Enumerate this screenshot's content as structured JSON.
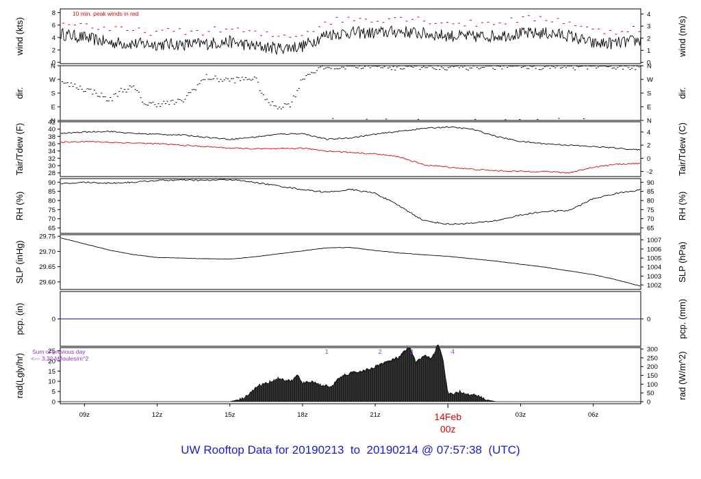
{
  "footer": {
    "title": "UW Rooftop Data for 20190213  to  20190214 @ 07:57:38  (UTC)"
  },
  "colors": {
    "ink": "#000000",
    "red": "#e00000",
    "blue": "#0000cc",
    "purple": "#9b30d9",
    "footer": "#1a1acd"
  },
  "time_axis": {
    "start_hour": 8.0,
    "end_hour": 31.96,
    "ticks": [
      {
        "hour": 9,
        "label": "09z"
      },
      {
        "hour": 12,
        "label": "12z"
      },
      {
        "hour": 15,
        "label": "15z"
      },
      {
        "hour": 18,
        "label": "18z"
      },
      {
        "hour": 21,
        "label": "21z"
      },
      {
        "hour": 27,
        "label": "03z"
      },
      {
        "hour": 30,
        "label": "06z"
      }
    ],
    "day_marker": {
      "hour": 24,
      "date_label": "14Feb",
      "time_label": "00z"
    }
  },
  "chart_data": [
    {
      "id": "wind",
      "type": "line",
      "ylabel_left": "wind (kts)",
      "ylabel_right": "wind (m/s)",
      "ylim": [
        -0.2,
        8.6
      ],
      "yticks_left": [
        0,
        2,
        4,
        6,
        8
      ],
      "yticks_right": [
        {
          "label": "0",
          "value": 0
        },
        {
          "label": "1",
          "value": 1.944
        },
        {
          "label": "2",
          "value": 3.888
        },
        {
          "label": "3",
          "value": 5.832
        },
        {
          "label": "4",
          "value": 7.776
        }
      ],
      "annotation": "10 min. peak winds in red",
      "series": [
        {
          "role": "mean",
          "x": [
            8,
            9,
            10,
            11,
            12,
            13,
            14,
            15,
            16,
            17,
            18,
            19,
            20,
            21,
            22,
            23,
            24,
            25,
            26,
            27,
            28,
            29,
            30,
            31,
            32
          ],
          "y": [
            4.6,
            4.0,
            3.2,
            3.0,
            2.9,
            2.9,
            3.0,
            3.3,
            2.6,
            2.3,
            2.6,
            4.5,
            4.8,
            4.7,
            5.0,
            4.6,
            4.3,
            4.1,
            4.3,
            4.6,
            4.7,
            4.3,
            3.0,
            3.1,
            3.6
          ]
        },
        {
          "role": "peak",
          "x": [
            8,
            9,
            10,
            11,
            12,
            13,
            14,
            15,
            16,
            17,
            18,
            19,
            20,
            21,
            22,
            23,
            24,
            25,
            26,
            27,
            28,
            29,
            30,
            31,
            32
          ],
          "y": [
            6.5,
            6.0,
            5.3,
            5.0,
            4.9,
            4.9,
            5.0,
            5.4,
            4.6,
            4.2,
            4.6,
            6.6,
            7.0,
            6.9,
            7.3,
            6.8,
            6.4,
            6.2,
            6.5,
            6.9,
            7.1,
            6.5,
            5.0,
            5.1,
            5.6
          ]
        }
      ]
    },
    {
      "id": "dir",
      "type": "scatter",
      "ylabel_left": "dir.",
      "ylabel_right": "dir.",
      "ylim": [
        0,
        360
      ],
      "yticks": [
        {
          "label": "N",
          "value": 0
        },
        {
          "label": "E",
          "value": 90
        },
        {
          "label": "S",
          "value": 180
        },
        {
          "label": "W",
          "value": 270
        },
        {
          "label": "N",
          "value": 360
        }
      ],
      "x": [
        8,
        8.5,
        9,
        9.5,
        10,
        10.5,
        11,
        11.5,
        12,
        12.5,
        13,
        13.5,
        14,
        14.5,
        15,
        15.5,
        16,
        16.5,
        17,
        17.5,
        18,
        18.5,
        19,
        20,
        21,
        22,
        23,
        24,
        25,
        26,
        27,
        28,
        29,
        30,
        31,
        31.9
      ],
      "y": [
        245,
        230,
        205,
        180,
        130,
        200,
        215,
        105,
        110,
        115,
        125,
        210,
        285,
        270,
        265,
        270,
        280,
        120,
        90,
        110,
        285,
        330,
        350,
        355,
        352,
        350,
        355,
        352,
        350,
        355,
        350,
        355,
        352,
        350,
        355,
        352
      ]
    },
    {
      "id": "temp",
      "type": "line",
      "ylabel_left": "Tair/Tdew (F)",
      "ylabel_right": "Tair/Tdew (C)",
      "ylim": [
        27,
        42
      ],
      "yticks_left": [
        28,
        30,
        32,
        34,
        36,
        38,
        40,
        42
      ],
      "yticks_right": [
        {
          "label": "-2",
          "value": 28.4
        },
        {
          "label": "0",
          "value": 32
        },
        {
          "label": "2",
          "value": 35.6
        },
        {
          "label": "4",
          "value": 39.2
        }
      ],
      "series": [
        {
          "name": "Tair",
          "color": "#000000",
          "x": [
            8,
            9,
            10,
            11,
            12,
            13,
            14,
            15,
            16,
            17,
            18,
            19,
            20,
            21,
            22,
            23,
            24,
            25,
            26,
            27,
            28,
            29,
            30,
            31,
            32
          ],
          "y": [
            38.8,
            39.2,
            39.4,
            38.8,
            38.6,
            38.4,
            37.8,
            37.2,
            37.8,
            38.6,
            38.8,
            37.2,
            37.6,
            38.6,
            39.4,
            40.2,
            40.6,
            40.0,
            38.0,
            36.6,
            36.0,
            35.6,
            35.2,
            34.8,
            34.2
          ]
        },
        {
          "name": "Tdew",
          "color": "#e00000",
          "x": [
            8,
            9,
            10,
            11,
            12,
            13,
            14,
            15,
            16,
            17,
            18,
            19,
            20,
            21,
            22,
            23,
            24,
            25,
            26,
            27,
            28,
            29,
            30,
            31,
            32
          ],
          "y": [
            36.4,
            36.6,
            36.4,
            36.2,
            36.0,
            35.6,
            35.2,
            34.8,
            34.6,
            34.6,
            34.8,
            34.0,
            33.6,
            33.2,
            32.4,
            30.2,
            29.6,
            29.0,
            28.6,
            28.4,
            28.4,
            28.0,
            29.6,
            30.4,
            30.6
          ]
        }
      ]
    },
    {
      "id": "rh",
      "type": "line",
      "ylabel_left": "RH (%)",
      "ylabel_right": "RH (%)",
      "ylim": [
        62,
        92
      ],
      "yticks": [
        65,
        70,
        75,
        80,
        85,
        90
      ],
      "x": [
        8,
        9,
        10,
        11,
        12,
        13,
        14,
        15,
        16,
        17,
        18,
        19,
        20,
        21,
        22,
        23,
        24,
        25,
        26,
        27,
        28,
        29,
        30,
        31,
        32
      ],
      "y": [
        89,
        90,
        89.5,
        90,
        91,
        91.2,
        91,
        91.5,
        90,
        88,
        86,
        84.5,
        86,
        84,
        77,
        69,
        67,
        67.5,
        69,
        72,
        74,
        74.5,
        81,
        84,
        86
      ]
    },
    {
      "id": "slp",
      "type": "line",
      "ylabel_left": "SLP (inHg)",
      "ylabel_right": "SLP (hPa)",
      "ylim": [
        29.575,
        29.755
      ],
      "yticks_left": [
        {
          "label": "29.60",
          "value": 29.6
        },
        {
          "label": "29.65",
          "value": 29.65
        },
        {
          "label": "29.70",
          "value": 29.7
        },
        {
          "label": "29.75",
          "value": 29.75
        }
      ],
      "yticks_right": [
        {
          "label": "1002",
          "value": 29.59
        },
        {
          "label": "1003",
          "value": 29.619
        },
        {
          "label": "1004",
          "value": 29.649
        },
        {
          "label": "1005",
          "value": 29.678
        },
        {
          "label": "1006",
          "value": 29.708
        },
        {
          "label": "1007",
          "value": 29.738
        }
      ],
      "x": [
        8,
        9,
        10,
        11,
        12,
        13,
        14,
        15,
        16,
        17,
        18,
        19,
        20,
        21,
        22,
        23,
        24,
        25,
        26,
        27,
        28,
        29,
        30,
        31,
        32
      ],
      "y": [
        29.745,
        29.725,
        29.705,
        29.69,
        29.68,
        29.678,
        29.676,
        29.675,
        29.682,
        29.692,
        29.702,
        29.712,
        29.713,
        29.703,
        29.695,
        29.689,
        29.684,
        29.676,
        29.668,
        29.658,
        29.648,
        29.636,
        29.624,
        29.606,
        29.585
      ]
    },
    {
      "id": "pcp",
      "type": "line",
      "ylabel_left": "pcp. (in)",
      "ylabel_right": "pcp. (mm)",
      "ylim": [
        -1,
        1
      ],
      "yticks_left": [
        {
          "label": "0",
          "value": 0
        }
      ],
      "yticks_right": [
        {
          "label": "0",
          "value": 0
        }
      ],
      "x": [
        8,
        32
      ],
      "y": [
        0,
        0
      ]
    },
    {
      "id": "rad",
      "type": "area",
      "ylabel_left": "rad(Lgly/hr)",
      "ylabel_right": "rad (W/m^2)",
      "ylim": [
        -1,
        26.5
      ],
      "yticks_left": [
        0,
        5,
        10,
        15,
        20,
        25
      ],
      "yticks_right": [
        {
          "label": "0",
          "value": 0
        },
        {
          "label": "50",
          "value": 4.3
        },
        {
          "label": "100",
          "value": 8.6
        },
        {
          "label": "150",
          "value": 12.9
        },
        {
          "label": "200",
          "value": 17.2
        },
        {
          "label": "250",
          "value": 21.5
        },
        {
          "label": "300",
          "value": 25.8
        }
      ],
      "annotation_lines": [
        "Sum of previous day",
        "<--- 3.22 MJoules/m^2"
      ],
      "markers": [
        {
          "label": "1",
          "hour": 19.0
        },
        {
          "label": "2",
          "hour": 21.2
        },
        {
          "label": "3",
          "hour": 22.5
        },
        {
          "label": "4",
          "hour": 24.2
        }
      ],
      "x": [
        15.0,
        15.5,
        15.8,
        16.2,
        16.6,
        17.0,
        17.5,
        17.8,
        18.0,
        18.4,
        18.8,
        19.2,
        19.6,
        20.0,
        20.4,
        20.8,
        21.2,
        21.6,
        22.0,
        22.4,
        22.7,
        23.0,
        23.3,
        23.6,
        23.8,
        24.0,
        24.2,
        24.5,
        24.8,
        25.2,
        25.6,
        26.0
      ],
      "y": [
        0,
        1.5,
        4,
        8,
        9.5,
        11.5,
        10,
        13,
        9,
        10,
        8,
        7.5,
        12.5,
        14,
        15,
        16,
        18.5,
        20,
        22,
        27,
        19,
        23,
        21,
        28,
        21,
        4,
        3.5,
        5,
        3.5,
        3,
        1,
        0
      ]
    }
  ]
}
